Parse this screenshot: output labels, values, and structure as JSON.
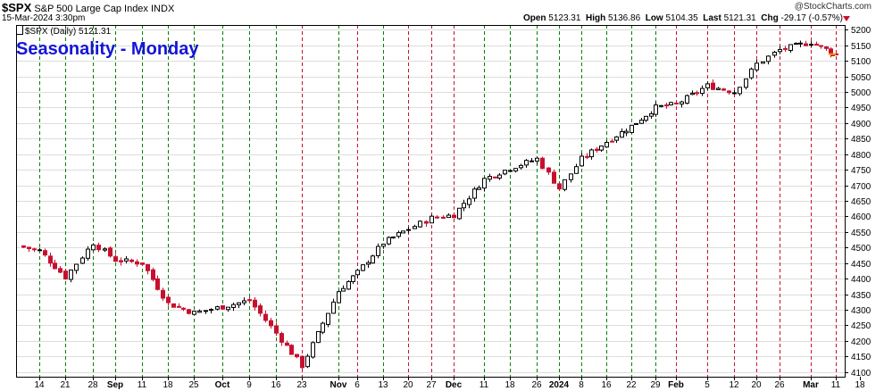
{
  "header": {
    "symbol": "$SPX",
    "name": "S&P 500 Large Cap Index",
    "exchange": "INDX",
    "timestamp": "15-Mar-2024 3:30pm",
    "brand": "@StockCharts.com",
    "open_label": "Open",
    "open": "5123.31",
    "high_label": "High",
    "high": "5136.86",
    "low_label": "Low",
    "low": "5104.35",
    "last_label": "Last",
    "last": "5121.31",
    "chg_label": "Chg",
    "chg": "-29.17 (-0.57%)"
  },
  "legend": {
    "text": "$SPX (Daily) 5121.31"
  },
  "overlay_title": "Seasonality - Monday",
  "colors": {
    "up": "#ffffff",
    "down": "#c8102e",
    "green_line": "#008000",
    "red_line": "#c8102e",
    "title": "#1515d8",
    "grid": "#dddddd"
  },
  "chart_data": {
    "type": "ohlc-candlestick",
    "y_axis": {
      "min": 4100,
      "max": 5200,
      "step": 50,
      "position": "right"
    },
    "ylim": [
      4085,
      5215
    ],
    "x_tick_labels": [
      {
        "label": "14",
        "bold": false
      },
      {
        "label": "21",
        "bold": false
      },
      {
        "label": "28",
        "bold": false
      },
      {
        "label": "Sep",
        "bold": true
      },
      {
        "label": "11",
        "bold": false
      },
      {
        "label": "18",
        "bold": false
      },
      {
        "label": "25",
        "bold": false
      },
      {
        "label": "Oct",
        "bold": true
      },
      {
        "label": "9",
        "bold": false
      },
      {
        "label": "16",
        "bold": false
      },
      {
        "label": "23",
        "bold": false
      },
      {
        "label": "Nov",
        "bold": true
      },
      {
        "label": "6",
        "bold": false
      },
      {
        "label": "13",
        "bold": false
      },
      {
        "label": "20",
        "bold": false
      },
      {
        "label": "27",
        "bold": false
      },
      {
        "label": "Dec",
        "bold": true
      },
      {
        "label": "11",
        "bold": false
      },
      {
        "label": "18",
        "bold": false
      },
      {
        "label": "26",
        "bold": false
      },
      {
        "label": "2024",
        "bold": true
      },
      {
        "label": "8",
        "bold": false
      },
      {
        "label": "16",
        "bold": false
      },
      {
        "label": "22",
        "bold": false
      },
      {
        "label": "29",
        "bold": false
      },
      {
        "label": "Feb",
        "bold": true
      },
      {
        "label": "5",
        "bold": false
      },
      {
        "label": "12",
        "bold": false
      },
      {
        "label": "20",
        "bold": false
      },
      {
        "label": "26",
        "bold": false
      },
      {
        "label": "Mar",
        "bold": true
      },
      {
        "label": "11",
        "bold": false
      },
      {
        "label": "18",
        "bold": false
      }
    ],
    "monday_lines": [
      "green",
      "green",
      "green",
      "green",
      "green",
      "green",
      "green",
      "green",
      "green",
      "green",
      "red",
      "green",
      "red",
      "green",
      "red",
      "red",
      "red",
      "green",
      "green",
      "green",
      "green",
      "green",
      "green",
      "green",
      "green",
      "red",
      "red",
      "red",
      "red",
      "red",
      "red",
      "red"
    ],
    "weekly_closes": [
      {
        "week": "14",
        "close": 4490
      },
      {
        "week": "21",
        "close": 4405
      },
      {
        "week": "28",
        "close": 4515
      },
      {
        "week": "Sep",
        "close": 4460
      },
      {
        "week": "11",
        "close": 4450
      },
      {
        "week": "18",
        "close": 4320
      },
      {
        "week": "25",
        "close": 4290
      },
      {
        "week": "Oct",
        "close": 4310
      },
      {
        "week": "9",
        "close": 4330
      },
      {
        "week": "16",
        "close": 4225
      },
      {
        "week": "23",
        "close": 4120
      },
      {
        "week": "Nov",
        "close": 4360
      },
      {
        "week": "6",
        "close": 4420
      },
      {
        "week": "13",
        "close": 4515
      },
      {
        "week": "20",
        "close": 4560
      },
      {
        "week": "27",
        "close": 4595
      },
      {
        "week": "Dec",
        "close": 4605
      },
      {
        "week": "11",
        "close": 4720
      },
      {
        "week": "18",
        "close": 4755
      },
      {
        "week": "26",
        "close": 4785
      },
      {
        "week": "2024",
        "close": 4690
      },
      {
        "week": "8",
        "close": 4785
      },
      {
        "week": "16",
        "close": 4840
      },
      {
        "week": "22",
        "close": 4890
      },
      {
        "week": "29",
        "close": 4950
      },
      {
        "week": "Feb",
        "close": 4960
      },
      {
        "week": "5",
        "close": 5020
      },
      {
        "week": "12",
        "close": 5000
      },
      {
        "week": "20",
        "close": 5090
      },
      {
        "week": "26",
        "close": 5135
      },
      {
        "week": "Mar",
        "close": 5160
      },
      {
        "week": "11",
        "close": 5121
      }
    ],
    "last_close": 5121.31
  }
}
